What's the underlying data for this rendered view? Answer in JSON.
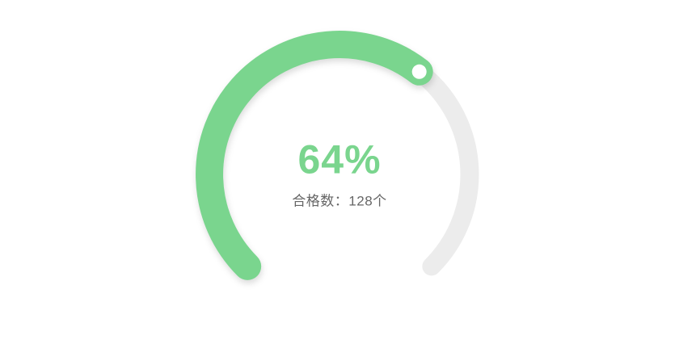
{
  "chart_data": {
    "type": "gauge",
    "percent": 64,
    "percent_label": "64%",
    "sub_label": "合格数：128个",
    "sub_label_name": "合格数",
    "qualified_count": 128,
    "qualified_count_label": "128个",
    "start_angle_deg": 225,
    "end_angle_deg": -45,
    "sweep_deg": 270,
    "value_range": [
      0,
      100
    ],
    "legend": "none",
    "grid": "off",
    "colors": {
      "progress": "#7ad58e",
      "track": "#ececec",
      "percent_text": "#7ad58e",
      "sub_text": "#666666",
      "pointer_dot_fill": "#ffffff",
      "background": "#ffffff"
    }
  }
}
